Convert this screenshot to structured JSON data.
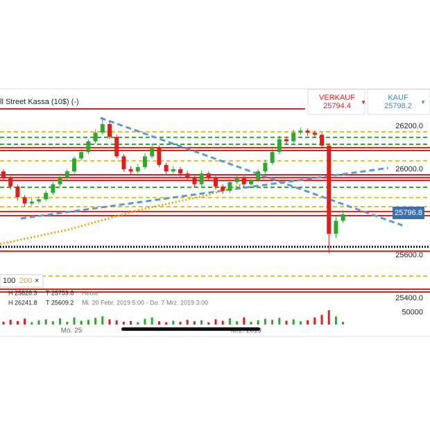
{
  "header": {
    "title": "ll Street Kassa (10$) (-)",
    "sell_label": "VERKAUF",
    "sell_price": "25794.4",
    "buy_label": "KAUF",
    "buy_price": "25798.2"
  },
  "legend": {
    "items": [
      "100",
      "200"
    ]
  },
  "info": {
    "rows": [
      [
        "H 25828.3",
        "T 25759.8",
        "Heute"
      ],
      [
        "H 26241.8",
        "T 25609.2",
        "Mi. 20 Febr. 2019 5:00 - Do. 7 Mrz. 2019 3:00"
      ]
    ]
  },
  "chart_data": {
    "type": "candlestick",
    "xlabels": [
      {
        "value": 9.6,
        "label": "Mo. 25"
      },
      {
        "value": 34.3,
        "label": "Mrz. 2019"
      }
    ],
    "open": [
      25990,
      25960,
      25920,
      25870,
      25840,
      25850,
      25860,
      25890,
      25930,
      25960,
      25990,
      26050,
      26080,
      26130,
      26170,
      26210,
      26150,
      26060,
      26000,
      25990,
      26010,
      26060,
      26100,
      26020,
      25990,
      26000,
      25980,
      25960,
      25930,
      25980,
      25960,
      25920,
      25900,
      25940,
      25960,
      25930,
      25950,
      25990,
      26030,
      26080,
      26140,
      26130,
      26170,
      26180,
      26170,
      26160,
      26110,
      25700,
      25760
    ],
    "high": [
      26000,
      25970,
      25930,
      25880,
      25865,
      25875,
      25900,
      25940,
      25975,
      26000,
      26060,
      26095,
      26140,
      26185,
      26240,
      26220,
      26160,
      26070,
      26015,
      26025,
      26075,
      26120,
      26110,
      26030,
      26015,
      26010,
      25990,
      25970,
      25995,
      25990,
      25970,
      25930,
      25955,
      25975,
      25970,
      25965,
      26000,
      26045,
      26095,
      26155,
      26150,
      26185,
      26195,
      26190,
      26180,
      26170,
      26120,
      25780,
      25810
    ],
    "low": [
      25950,
      25905,
      25855,
      25825,
      25830,
      25840,
      25850,
      25880,
      25920,
      25950,
      25980,
      26040,
      26070,
      26120,
      26160,
      26140,
      26050,
      25990,
      25975,
      25980,
      26000,
      26050,
      26010,
      25975,
      25980,
      25965,
      25945,
      25915,
      25920,
      25945,
      25905,
      25885,
      25890,
      25930,
      25915,
      25920,
      25940,
      25980,
      26020,
      26070,
      26115,
      26120,
      26160,
      26155,
      26145,
      26095,
      25610,
      25680,
      25750
    ],
    "close": [
      25960,
      25920,
      25870,
      25840,
      25850,
      25860,
      25890,
      25930,
      25960,
      25990,
      26050,
      26080,
      26130,
      26170,
      26210,
      26150,
      26060,
      26000,
      25990,
      26010,
      26060,
      26100,
      26020,
      25990,
      26000,
      25980,
      25960,
      25930,
      25980,
      25960,
      25920,
      25900,
      25940,
      25960,
      25930,
      25950,
      25990,
      26030,
      26080,
      26140,
      26130,
      26170,
      26180,
      26170,
      26160,
      26110,
      25700,
      25760,
      25790
    ],
    "volume": [
      12000,
      20000,
      15000,
      25000,
      10000,
      18000,
      22000,
      14000,
      26000,
      12000,
      30000,
      16000,
      20000,
      28000,
      35000,
      22000,
      18000,
      12000,
      15000,
      10000,
      24000,
      30000,
      14000,
      10000,
      16000,
      12000,
      20000,
      14000,
      18000,
      10000,
      22000,
      16000,
      26000,
      14000,
      30000,
      12000,
      18000,
      24000,
      20000,
      28000,
      16000,
      22000,
      14000,
      18000,
      30000,
      40000,
      60000,
      34000,
      12000
    ],
    "ylim": [
      25320,
      26370
    ],
    "yticks": [
      {
        "value": 26200,
        "label": "26200.0"
      },
      {
        "value": 26000,
        "label": "26000.0"
      },
      {
        "value": 25600,
        "label": "25600.0"
      },
      {
        "value": 25400,
        "label": "25400.0"
      }
    ],
    "vlim": [
      0,
      55000
    ],
    "vticks": [
      50000
    ],
    "last": {
      "value": 25796.8,
      "label": "25796.8"
    },
    "levels": [
      {
        "value": 26174,
        "color": "#e8c020",
        "dash": "dashed"
      },
      {
        "value": 26148,
        "color": "#2ea82e",
        "dash": "dashed"
      },
      {
        "value": 26116,
        "color": "#2ea82e",
        "dash": "dashed"
      },
      {
        "value": 26100,
        "color": "#e31c1c",
        "dash": "solid"
      },
      {
        "value": 26087,
        "color": "#e31c1c",
        "dash": "solid"
      },
      {
        "value": 26039,
        "color": "#e8c020",
        "dash": "dashed"
      },
      {
        "value": 25974,
        "color": "#e31c1c",
        "dash": "solid"
      },
      {
        "value": 25961,
        "color": "#e31c1c",
        "dash": "solid"
      },
      {
        "value": 25948,
        "color": "#e31c1c",
        "dash": "solid"
      },
      {
        "value": 25916,
        "color": "#2ea82e",
        "dash": "dashed"
      },
      {
        "value": 25868,
        "color": "#e8c020",
        "dash": "dashed"
      },
      {
        "value": 25826,
        "color": "#e8c020",
        "dash": "dashed"
      },
      {
        "value": 25803,
        "color": "#e31c1c",
        "dash": "solid"
      },
      {
        "value": 25784,
        "color": "#e31c1c",
        "dash": "solid"
      },
      {
        "value": 25639,
        "color": "#111111",
        "dash": "dotted"
      },
      {
        "value": 25619,
        "color": "#e31c1c",
        "dash": "solid"
      },
      {
        "value": 25503,
        "color": "#e8c020",
        "dash": "dashed"
      },
      {
        "value": 25442,
        "color": "#e31c1c",
        "dash": "solid"
      },
      {
        "value": 25429,
        "color": "#e31c1c",
        "dash": "solid"
      }
    ],
    "trendlines": [
      {
        "x": [
          13.7,
          56.4
        ],
        "values": [
          26239,
          25739
        ],
        "color": "#5b9bd5"
      },
      {
        "x": [
          2.45,
          54.4
        ],
        "values": [
          25771,
          26006
        ],
        "color": "#5b9bd5"
      }
    ],
    "ma": {
      "x": [
        -0.5,
        9.3,
        19.1,
        28.9,
        33.8
      ],
      "values": [
        25652,
        25720,
        25810,
        25880,
        25930
      ],
      "color": "#e8a800"
    }
  }
}
